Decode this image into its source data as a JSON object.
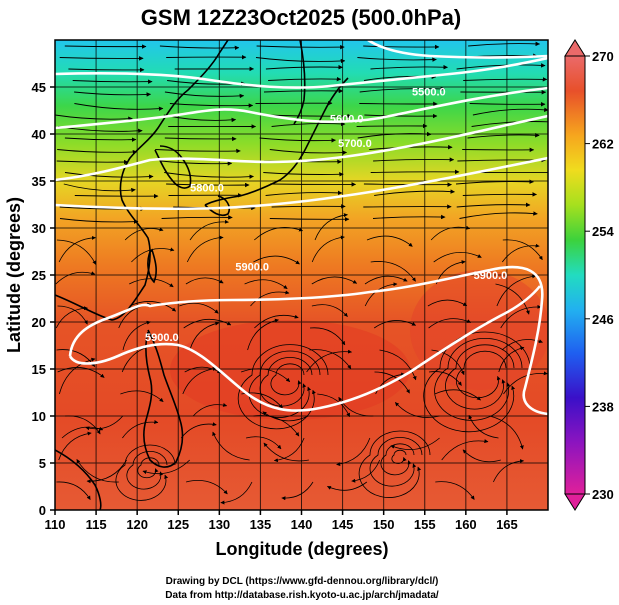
{
  "chart_data": {
    "type": "heatmap",
    "title": "GSM 12Z23Oct2025 (500.0hPa)",
    "xlabel": "Longitude (degrees)",
    "ylabel": "Latitude  (degrees)",
    "xlim": [
      110,
      170
    ],
    "ylim": [
      0,
      50
    ],
    "xticks": [
      "110",
      "115",
      "120",
      "125",
      "130",
      "135",
      "140",
      "145",
      "150",
      "155",
      "160",
      "165"
    ],
    "yticks": [
      "0",
      "5",
      "10",
      "15",
      "20",
      "25",
      "30",
      "35",
      "40",
      "45"
    ],
    "grid": true,
    "field": "temperature (K)",
    "colorbar": {
      "ticks": [
        "230",
        "238",
        "246",
        "254",
        "262",
        "270"
      ],
      "range": [
        230,
        270
      ],
      "colors": [
        "#e0209a",
        "#3a10c8",
        "#1f5ef0",
        "#22c6f0",
        "#22e0a0",
        "#3cd23c",
        "#a6e01e",
        "#f0dc1e",
        "#f6a51e",
        "#ee6a1e",
        "#e44a28",
        "#ea6a6a"
      ]
    },
    "contours": [
      {
        "label": "5900.0",
        "lon": 134,
        "lat": 25.5
      },
      {
        "label": "5900.0",
        "lon": 163,
        "lat": 24.6
      },
      {
        "label": "5900.0",
        "lon": 123,
        "lat": 18
      },
      {
        "label": "5800.0",
        "lon": 128.5,
        "lat": 33.9
      },
      {
        "label": "5700.0",
        "lon": 146.5,
        "lat": 38.6
      },
      {
        "label": "5600.0",
        "lon": 145.5,
        "lat": 41.2
      },
      {
        "label": "5500.0",
        "lon": 155.5,
        "lat": 44.1
      }
    ]
  },
  "credits": {
    "line1": "Drawing by DCL (https://www.gfd-dennou.org/library/dcl/)",
    "line2": "Data from http://database.rish.kyoto-u.ac.jp/arch/jmadata/"
  }
}
